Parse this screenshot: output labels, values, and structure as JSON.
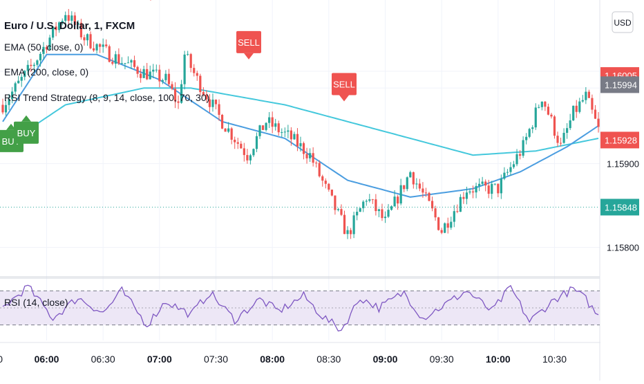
{
  "chart_data": {
    "type": "candlestick",
    "symbol_title": "Euro / U.S. Dollar, 1, FXCM",
    "currency_button": "USD",
    "indicators": [
      "EMA (50, close, 0)",
      "EMA (200, close, 0)",
      "RSI Trend Strategy (8, 9, 14, close, 100, 70, 30)"
    ],
    "rsi_label": "RSI (14, close)",
    "price_axis": {
      "ylim": [
        1.15765,
        1.16095
      ],
      "ticks": [
        1.159,
        1.158
      ],
      "tick_labels": [
        "1.15900",
        "1.15800"
      ]
    },
    "time_axis": {
      "ticks": [
        "05:30",
        "06:00",
        "06:30",
        "07:00",
        "07:30",
        "08:00",
        "08:30",
        "09:00",
        "09:30",
        "10:00",
        "10:30"
      ],
      "tick_labels": [
        "2:00",
        "06:00",
        "06:30",
        "07:00",
        "07:30",
        "08:00",
        "08:30",
        "09:00",
        "09:30",
        "10:00",
        "10:30"
      ],
      "bold": [
        "06:00",
        "07:00",
        "08:00",
        "09:00",
        "10:00"
      ]
    },
    "price_labels": [
      {
        "value": 1.16005,
        "text": "1.16005",
        "color": "#ef5350"
      },
      {
        "value": 1.15994,
        "text": "1.15994",
        "color": "#787b86"
      },
      {
        "value": 1.15928,
        "text": "1.15928",
        "color": "#ef5350"
      },
      {
        "value": 1.15848,
        "text": "1.15848",
        "color": "#26a69a"
      }
    ],
    "horizontal_line": 1.15848,
    "signals": [
      {
        "text": "BUY",
        "type": "buy",
        "price": 1.1594
      },
      {
        "text": "BUY",
        "type": "buy",
        "price": 1.1595
      },
      {
        "text": "SELL",
        "type": "sell",
        "price": 1.16095
      },
      {
        "text": "SELL",
        "type": "sell",
        "price": 1.16025
      },
      {
        "text": "SELL",
        "type": "sell",
        "price": 1.15975
      }
    ],
    "price_keypoints": [
      [
        0,
        1.1597
      ],
      [
        10,
        1.1602
      ],
      [
        20,
        1.1608
      ],
      [
        26,
        1.1605
      ],
      [
        34,
        1.1603
      ],
      [
        44,
        1.1601
      ],
      [
        52,
        1.16
      ],
      [
        56,
        1.1597
      ],
      [
        58,
        1.1603
      ],
      [
        62,
        1.16
      ],
      [
        70,
        1.1595
      ],
      [
        78,
        1.1591
      ],
      [
        84,
        1.1595
      ],
      [
        92,
        1.1593
      ],
      [
        98,
        1.1591
      ],
      [
        103,
        1.1587
      ],
      [
        110,
        1.15815
      ],
      [
        116,
        1.1586
      ],
      [
        122,
        1.1583
      ],
      [
        130,
        1.1589
      ],
      [
        136,
        1.1585
      ],
      [
        140,
        1.1582
      ],
      [
        148,
        1.1587
      ],
      [
        158,
        1.1587
      ],
      [
        166,
        1.1592
      ],
      [
        172,
        1.1598
      ],
      [
        178,
        1.1592
      ],
      [
        182,
        1.1596
      ],
      [
        186,
        1.1598
      ],
      [
        190,
        1.1594
      ]
    ],
    "ema50_keypoints": [
      [
        0,
        1.1595
      ],
      [
        14,
        1.1603
      ],
      [
        30,
        1.1603
      ],
      [
        50,
        1.16
      ],
      [
        70,
        1.1595
      ],
      [
        90,
        1.1593
      ],
      [
        110,
        1.1588
      ],
      [
        130,
        1.1586
      ],
      [
        150,
        1.1587
      ],
      [
        165,
        1.1589
      ],
      [
        180,
        1.1592
      ],
      [
        190,
        1.15945
      ]
    ],
    "ema200_keypoints": [
      [
        0,
        1.1592
      ],
      [
        20,
        1.1597
      ],
      [
        45,
        1.1599
      ],
      [
        60,
        1.1599
      ],
      [
        90,
        1.1597
      ],
      [
        120,
        1.1594
      ],
      [
        150,
        1.1591
      ],
      [
        170,
        1.15915
      ],
      [
        190,
        1.1593
      ]
    ],
    "rsi": {
      "ylim": [
        20,
        80
      ],
      "levels": [
        70,
        50,
        30
      ],
      "keypoints": [
        [
          0,
          50
        ],
        [
          8,
          75
        ],
        [
          16,
          38
        ],
        [
          24,
          62
        ],
        [
          32,
          44
        ],
        [
          38,
          70
        ],
        [
          46,
          30
        ],
        [
          52,
          58
        ],
        [
          60,
          42
        ],
        [
          66,
          68
        ],
        [
          74,
          36
        ],
        [
          82,
          60
        ],
        [
          88,
          46
        ],
        [
          96,
          64
        ],
        [
          102,
          40
        ],
        [
          108,
          24
        ],
        [
          114,
          62
        ],
        [
          120,
          50
        ],
        [
          128,
          68
        ],
        [
          134,
          38
        ],
        [
          142,
          56
        ],
        [
          148,
          70
        ],
        [
          156,
          46
        ],
        [
          162,
          74
        ],
        [
          168,
          34
        ],
        [
          176,
          60
        ],
        [
          182,
          72
        ],
        [
          186,
          60
        ],
        [
          190,
          40
        ]
      ]
    },
    "colors": {
      "up": "#26a69a",
      "down": "#ef5350",
      "ema50": "#4a9de0",
      "ema200": "#44c8dc",
      "rsi": "#7e57c2",
      "rsi_band": "#ede7f6",
      "buy": "#43a047",
      "sell": "#ef5350"
    }
  }
}
